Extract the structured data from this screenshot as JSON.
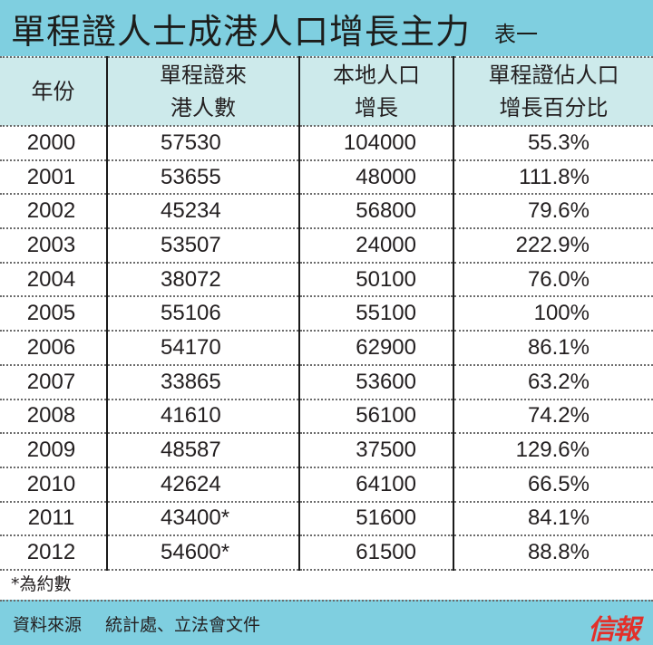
{
  "title": {
    "main": "單程證人士成港人口增長主力",
    "sub": "表一"
  },
  "table": {
    "headers": {
      "year": "年份",
      "permit_line1": "單程證來",
      "permit_line2": "港人數",
      "growth_line1": "本地人口",
      "growth_line2": "增長",
      "pct_line1": "單程證佔人口",
      "pct_line2": "增長百分比"
    },
    "rows": [
      {
        "year": "2000",
        "permit": "57530",
        "growth": "104000",
        "pct": "55.3%"
      },
      {
        "year": "2001",
        "permit": "53655",
        "growth": "48000",
        "pct": "111.8%"
      },
      {
        "year": "2002",
        "permit": "45234",
        "growth": "56800",
        "pct": "79.6%"
      },
      {
        "year": "2003",
        "permit": "53507",
        "growth": "24000",
        "pct": "222.9%"
      },
      {
        "year": "2004",
        "permit": "38072",
        "growth": "50100",
        "pct": "76.0%"
      },
      {
        "year": "2005",
        "permit": "55106",
        "growth": "55100",
        "pct": "100%"
      },
      {
        "year": "2006",
        "permit": "54170",
        "growth": "62900",
        "pct": "86.1%"
      },
      {
        "year": "2007",
        "permit": "33865",
        "growth": "53600",
        "pct": "63.2%"
      },
      {
        "year": "2008",
        "permit": "41610",
        "growth": "56100",
        "pct": "74.2%"
      },
      {
        "year": "2009",
        "permit": "48587",
        "growth": "37500",
        "pct": "129.6%"
      },
      {
        "year": "2010",
        "permit": "42624",
        "growth": "64100",
        "pct": "66.5%"
      },
      {
        "year": "2011",
        "permit": "43400*",
        "growth": "51600",
        "pct": "84.1%"
      },
      {
        "year": "2012",
        "permit": "54600*",
        "growth": "61500",
        "pct": "88.8%"
      }
    ]
  },
  "footnote": "*為約數",
  "footer": {
    "source_label": "資料來源",
    "source_value": "統計處、立法會文件",
    "logo": "信報"
  },
  "colors": {
    "title_bg": "#7fcfe0",
    "header_bg": "#cdeaeb",
    "logo": "#e3302a"
  }
}
